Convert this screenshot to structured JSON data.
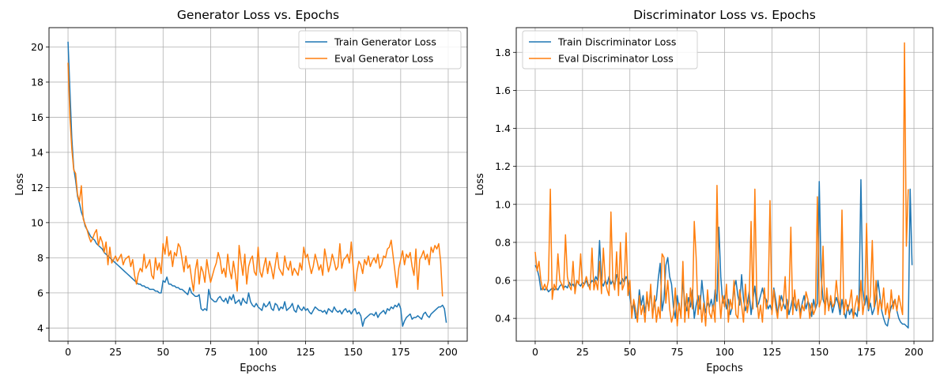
{
  "colors": {
    "train": "#1f77b4",
    "eval": "#ff7f0e",
    "grid": "#b0b0b0"
  },
  "chart_data": [
    {
      "type": "line",
      "title": "Generator Loss vs. Epochs",
      "xlabel": "Epochs",
      "ylabel": "Loss",
      "xlim": [
        -10,
        210
      ],
      "ylim": [
        3.25,
        21.1
      ],
      "xticks": [
        0,
        25,
        50,
        75,
        100,
        125,
        150,
        175,
        200
      ],
      "yticks": [
        4,
        6,
        8,
        10,
        12,
        14,
        16,
        18,
        20
      ],
      "grid": true,
      "legend_position": "top-right",
      "series": [
        {
          "name": "Train Generator Loss",
          "color": "#1f77b4",
          "values": [
            20.3,
            17.5,
            14.8,
            13.1,
            12.4,
            11.5,
            11.1,
            10.6,
            10.3,
            9.8,
            9.6,
            9.4,
            9.2,
            9.1,
            9.0,
            8.8,
            8.7,
            8.6,
            8.5,
            8.3,
            8.2,
            8.1,
            8.0,
            7.9,
            7.8,
            7.7,
            7.6,
            7.5,
            7.4,
            7.3,
            7.2,
            7.1,
            7.0,
            6.9,
            6.8,
            6.7,
            6.6,
            6.5,
            6.5,
            6.4,
            6.4,
            6.3,
            6.3,
            6.2,
            6.2,
            6.2,
            6.1,
            6.1,
            6.0,
            6.0,
            6.7,
            6.6,
            6.9,
            6.5,
            6.5,
            6.4,
            6.4,
            6.3,
            6.3,
            6.2,
            6.2,
            6.1,
            6.0,
            5.9,
            6.3,
            6.0,
            5.9,
            5.8,
            5.8,
            5.9,
            5.1,
            5.0,
            5.1,
            5.0,
            6.2,
            5.7,
            5.6,
            5.5,
            5.5,
            5.7,
            5.8,
            5.6,
            5.5,
            5.7,
            5.4,
            5.8,
            5.6,
            5.9,
            5.4,
            5.5,
            5.6,
            5.3,
            5.7,
            5.5,
            5.4,
            6.0,
            5.5,
            5.3,
            5.2,
            5.4,
            5.2,
            5.1,
            5.0,
            5.4,
            5.2,
            5.3,
            5.5,
            5.1,
            5.0,
            5.4,
            5.3,
            5.0,
            5.2,
            5.1,
            5.5,
            5.0,
            5.1,
            5.2,
            5.4,
            5.0,
            4.9,
            5.3,
            5.1,
            5.0,
            5.2,
            5.0,
            5.1,
            4.9,
            4.8,
            5.0,
            5.2,
            5.1,
            5.0,
            5.0,
            4.9,
            5.0,
            4.8,
            5.1,
            5.0,
            4.9,
            5.2,
            5.0,
            4.9,
            5.0,
            4.8,
            5.0,
            5.1,
            4.9,
            5.0,
            4.8,
            5.0,
            5.1,
            4.8,
            4.9,
            4.7,
            4.1,
            4.5,
            4.6,
            4.7,
            4.8,
            4.8,
            4.7,
            4.9,
            4.6,
            4.8,
            4.9,
            5.0,
            4.8,
            5.1,
            5.0,
            5.2,
            5.1,
            5.3,
            5.2,
            5.4,
            5.1,
            4.1,
            4.4,
            4.6,
            4.7,
            4.8,
            4.5,
            4.6,
            4.6,
            4.7,
            4.6,
            4.5,
            4.8,
            4.9,
            4.7,
            4.6,
            4.8,
            4.9,
            5.0,
            5.1,
            5.2,
            5.2,
            5.3,
            5.1,
            4.3
          ]
        },
        {
          "name": "Eval Generator Loss",
          "color": "#ff7f0e",
          "values": [
            19.1,
            16.0,
            14.2,
            13.0,
            12.8,
            11.6,
            11.2,
            12.1,
            10.2,
            9.9,
            9.6,
            9.2,
            8.9,
            9.1,
            9.4,
            9.6,
            8.7,
            9.2,
            8.9,
            8.3,
            8.9,
            7.6,
            8.6,
            7.7,
            7.9,
            8.1,
            7.8,
            8.0,
            8.2,
            7.6,
            7.9,
            8.0,
            8.1,
            7.5,
            7.9,
            7.0,
            6.5,
            7.1,
            7.4,
            7.2,
            8.2,
            7.4,
            7.6,
            7.9,
            7.0,
            6.8,
            8.0,
            7.3,
            7.7,
            7.1,
            8.8,
            8.2,
            9.2,
            8.1,
            8.4,
            7.5,
            8.3,
            8.1,
            8.8,
            8.6,
            7.9,
            7.2,
            8.1,
            7.4,
            7.6,
            6.8,
            6.1,
            7.3,
            7.9,
            6.5,
            7.5,
            7.2,
            6.6,
            7.9,
            7.2,
            6.6,
            7.0,
            7.4,
            7.7,
            8.3,
            7.9,
            7.1,
            7.4,
            6.9,
            8.2,
            7.3,
            6.8,
            7.8,
            7.1,
            6.1,
            8.7,
            7.8,
            7.0,
            8.2,
            6.5,
            7.5,
            7.9,
            8.1,
            7.2,
            7.0,
            8.6,
            7.2,
            6.9,
            7.5,
            8.0,
            7.1,
            7.8,
            7.4,
            6.8,
            7.6,
            8.3,
            7.4,
            7.2,
            7.0,
            8.1,
            7.5,
            7.3,
            7.8,
            7.0,
            7.4,
            7.2,
            7.0,
            7.7,
            7.3,
            8.6,
            8.0,
            8.2,
            7.6,
            7.1,
            7.5,
            8.2,
            7.8,
            7.3,
            7.6,
            7.0,
            8.5,
            7.9,
            7.2,
            7.6,
            8.2,
            7.8,
            7.3,
            7.5,
            8.8,
            7.4,
            7.9,
            8.0,
            8.2,
            7.7,
            8.9,
            7.5,
            6.1,
            7.2,
            7.8,
            7.6,
            7.1,
            7.9,
            7.6,
            8.1,
            7.5,
            7.8,
            8.0,
            7.7,
            8.2,
            7.4,
            7.6,
            8.1,
            8.0,
            8.5,
            8.6,
            9.0,
            8.1,
            7.2,
            6.3,
            7.4,
            7.9,
            8.4,
            7.6,
            8.2,
            8.0,
            8.3,
            7.5,
            7.0,
            8.5,
            6.2,
            7.9,
            8.1,
            8.4,
            7.9,
            8.2,
            7.6,
            8.6,
            8.3,
            8.7,
            8.5,
            8.8,
            7.8,
            5.8
          ]
        }
      ]
    },
    {
      "type": "line",
      "title": "Discriminator Loss vs. Epochs",
      "xlabel": "Epochs",
      "ylabel": "Loss",
      "xlim": [
        -10,
        210
      ],
      "ylim": [
        0.28,
        1.93
      ],
      "xticks": [
        0,
        25,
        50,
        75,
        100,
        125,
        150,
        175,
        200
      ],
      "yticks": [
        0.4,
        0.6,
        0.8,
        1.0,
        1.2,
        1.4,
        1.6,
        1.8
      ],
      "grid": true,
      "legend_position": "top-left",
      "series": [
        {
          "name": "Train Discriminator Loss",
          "color": "#1f77b4",
          "values": [
            0.68,
            0.66,
            0.62,
            0.55,
            0.56,
            0.55,
            0.56,
            0.54,
            0.55,
            0.56,
            0.55,
            0.56,
            0.55,
            0.57,
            0.58,
            0.56,
            0.57,
            0.56,
            0.59,
            0.57,
            0.58,
            0.56,
            0.6,
            0.58,
            0.57,
            0.59,
            0.58,
            0.6,
            0.57,
            0.58,
            0.6,
            0.59,
            0.62,
            0.6,
            0.81,
            0.59,
            0.57,
            0.6,
            0.58,
            0.62,
            0.58,
            0.6,
            0.57,
            0.63,
            0.6,
            0.58,
            0.61,
            0.59,
            0.62,
            0.6,
            0.51,
            0.45,
            0.48,
            0.4,
            0.42,
            0.55,
            0.47,
            0.52,
            0.43,
            0.5,
            0.45,
            0.55,
            0.42,
            0.48,
            0.5,
            0.61,
            0.69,
            0.44,
            0.5,
            0.68,
            0.72,
            0.62,
            0.58,
            0.46,
            0.4,
            0.52,
            0.45,
            0.43,
            0.6,
            0.48,
            0.44,
            0.51,
            0.46,
            0.55,
            0.4,
            0.47,
            0.52,
            0.45,
            0.6,
            0.5,
            0.43,
            0.48,
            0.46,
            0.5,
            0.44,
            0.55,
            0.49,
            0.88,
            0.62,
            0.48,
            0.52,
            0.45,
            0.5,
            0.42,
            0.46,
            0.56,
            0.6,
            0.52,
            0.47,
            0.63,
            0.5,
            0.44,
            0.48,
            0.54,
            0.42,
            0.5,
            0.57,
            0.46,
            0.48,
            0.52,
            0.56,
            0.51,
            0.5,
            0.45,
            0.47,
            0.44,
            0.56,
            0.5,
            0.43,
            0.47,
            0.52,
            0.48,
            0.45,
            0.5,
            0.42,
            0.46,
            0.51,
            0.47,
            0.44,
            0.5,
            0.43,
            0.48,
            0.52,
            0.45,
            0.49,
            0.47,
            0.41,
            0.5,
            0.45,
            0.48,
            1.12,
            0.62,
            0.5,
            0.47,
            0.52,
            0.45,
            0.49,
            0.43,
            0.47,
            0.51,
            0.48,
            0.42,
            0.5,
            0.44,
            0.4,
            0.47,
            0.42,
            0.45,
            0.41,
            0.43,
            0.41,
            0.5,
            1.13,
            0.55,
            0.47,
            0.52,
            0.44,
            0.48,
            0.42,
            0.45,
            0.5,
            0.6,
            0.52,
            0.44,
            0.4,
            0.37,
            0.36,
            0.42,
            0.46,
            0.48,
            0.5,
            0.44,
            0.4,
            0.38,
            0.37,
            0.37,
            0.36,
            0.35,
            1.08,
            0.68
          ]
        },
        {
          "name": "Eval Discriminator Loss",
          "color": "#ff7f0e",
          "values": [
            0.75,
            0.65,
            0.7,
            0.6,
            0.55,
            0.58,
            0.55,
            0.6,
            1.08,
            0.5,
            0.58,
            0.55,
            0.74,
            0.6,
            0.58,
            0.55,
            0.84,
            0.62,
            0.57,
            0.55,
            0.7,
            0.53,
            0.6,
            0.58,
            0.74,
            0.56,
            0.58,
            0.62,
            0.58,
            0.55,
            0.77,
            0.55,
            0.6,
            0.55,
            0.7,
            0.53,
            0.77,
            0.6,
            0.55,
            0.52,
            0.96,
            0.6,
            0.55,
            0.75,
            0.52,
            0.8,
            0.55,
            0.58,
            0.85,
            0.52,
            0.6,
            0.4,
            0.5,
            0.45,
            0.38,
            0.52,
            0.42,
            0.47,
            0.38,
            0.54,
            0.44,
            0.58,
            0.4,
            0.52,
            0.38,
            0.46,
            0.4,
            0.74,
            0.72,
            0.48,
            0.6,
            0.45,
            0.38,
            0.42,
            0.56,
            0.36,
            0.48,
            0.4,
            0.7,
            0.38,
            0.53,
            0.4,
            0.56,
            0.45,
            0.91,
            0.72,
            0.42,
            0.52,
            0.38,
            0.48,
            0.36,
            0.55,
            0.43,
            0.4,
            0.47,
            0.38,
            1.1,
            0.55,
            0.4,
            0.52,
            0.46,
            0.58,
            0.38,
            0.5,
            0.45,
            0.6,
            0.42,
            0.4,
            0.55,
            0.47,
            0.38,
            0.58,
            0.43,
            0.5,
            0.91,
            0.45,
            1.08,
            0.52,
            0.4,
            0.47,
            0.38,
            0.56,
            0.45,
            0.5,
            1.02,
            0.42,
            0.55,
            0.46,
            0.4,
            0.52,
            0.44,
            0.48,
            0.62,
            0.4,
            0.5,
            0.88,
            0.42,
            0.55,
            0.45,
            0.5,
            0.4,
            0.47,
            0.44,
            0.54,
            0.5,
            0.4,
            0.48,
            0.42,
            0.45,
            1.04,
            0.46,
            0.5,
            0.78,
            0.42,
            0.56,
            0.44,
            0.52,
            0.46,
            0.48,
            0.6,
            0.5,
            0.45,
            0.97,
            0.42,
            0.5,
            0.44,
            0.48,
            0.55,
            0.4,
            0.47,
            0.52,
            0.44,
            0.6,
            0.42,
            0.5,
            0.9,
            0.45,
            0.52,
            0.81,
            0.46,
            0.6,
            0.42,
            0.5,
            0.45,
            0.56,
            0.42,
            0.48,
            0.4,
            0.55,
            0.45,
            0.5,
            0.44,
            0.52,
            0.47,
            0.42,
            1.85,
            0.78,
            1.08
          ]
        }
      ]
    }
  ]
}
